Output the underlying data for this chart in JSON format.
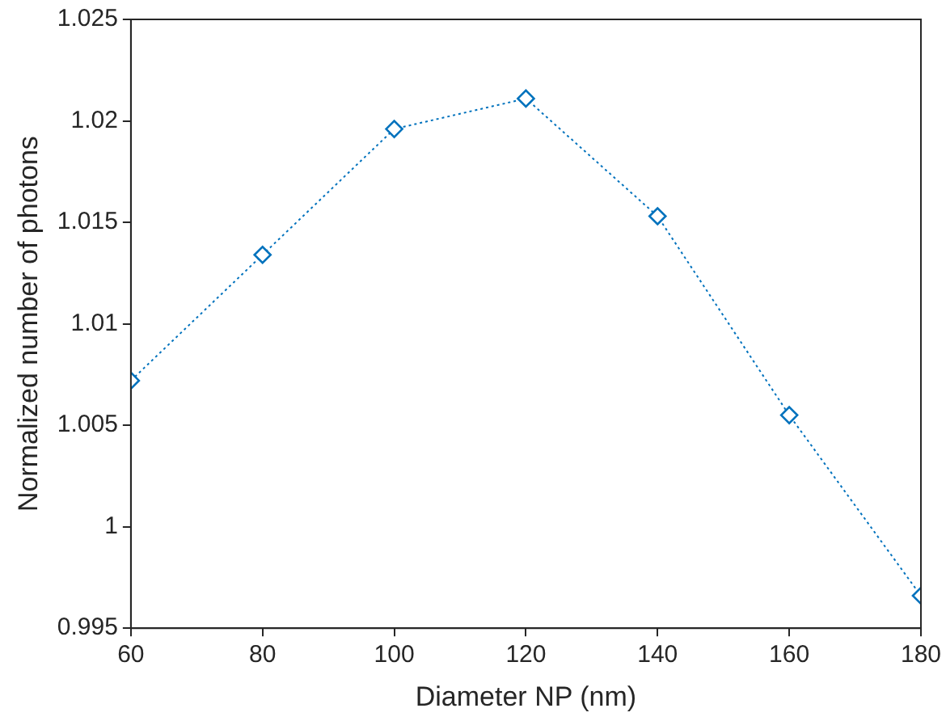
{
  "chart_data": {
    "type": "line",
    "xlabel": "Diameter NP (nm)",
    "ylabel": "Normalized number of photons",
    "x": [
      60,
      80,
      100,
      120,
      140,
      160,
      180
    ],
    "series": [
      {
        "color": "#0072bd",
        "values": [
          1.0072,
          1.0134,
          1.0196,
          1.0211,
          1.0153,
          1.0055,
          0.9966
        ]
      }
    ],
    "xlim": [
      60,
      180
    ],
    "xticks": [
      60,
      80,
      100,
      120,
      140,
      160,
      180
    ],
    "ylim": [
      0.995,
      1.025
    ],
    "yticks": [
      0.995,
      1,
      1.005,
      1.01,
      1.015,
      1.02,
      1.025
    ],
    "grid": false,
    "legend": false,
    "marker": "diamond",
    "line_style": "dotted"
  }
}
